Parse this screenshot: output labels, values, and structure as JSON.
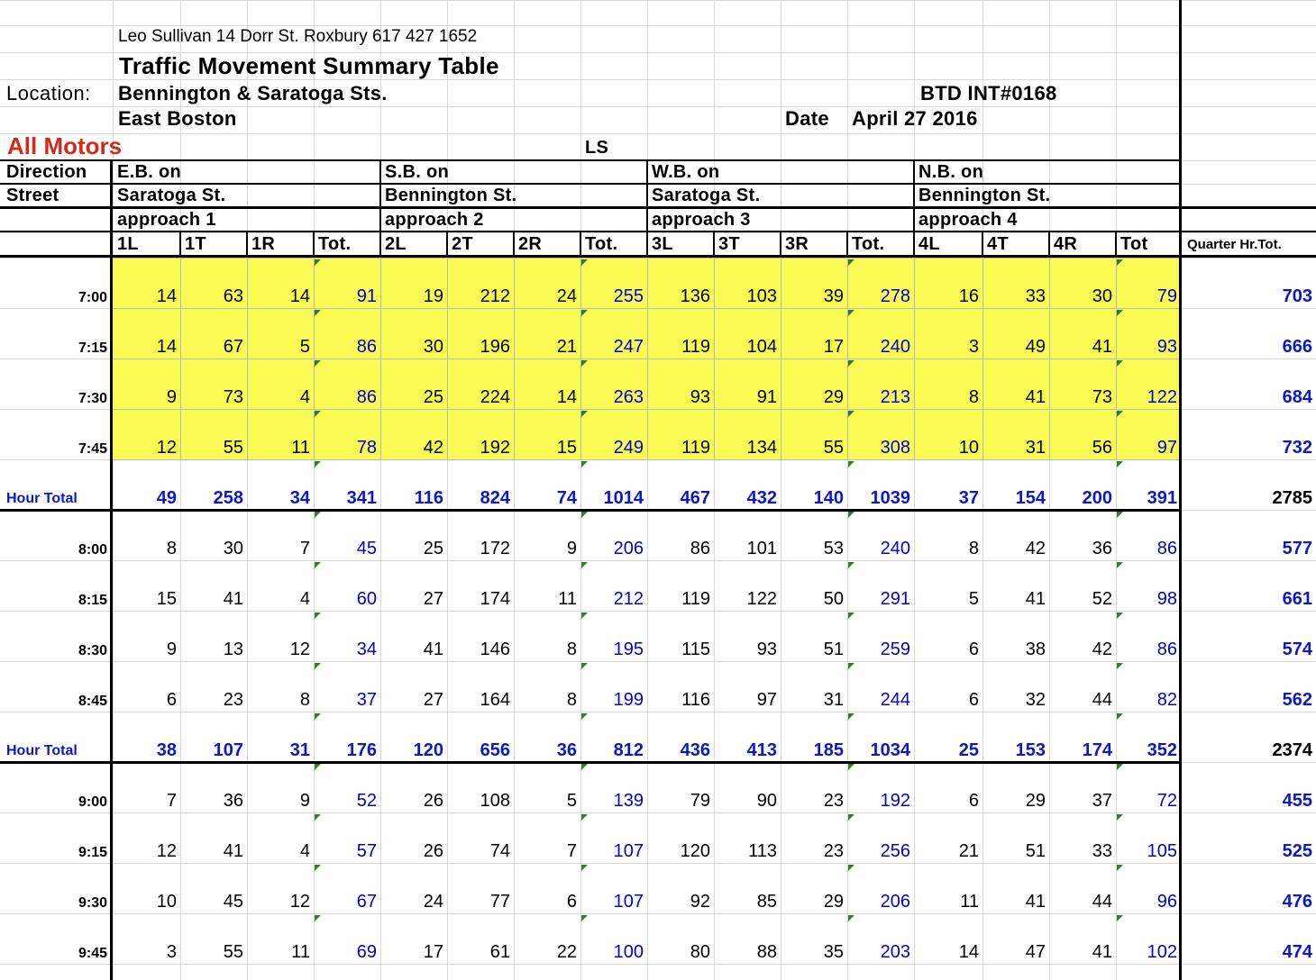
{
  "header": {
    "author_line": "Leo Sullivan 14 Dorr St. Roxbury  617 427 1652",
    "title": "Traffic Movement Summary Table",
    "location_label": "Location:",
    "location": "Bennington & Saratoga Sts.",
    "neighborhood": "East Boston",
    "btd_id": "BTD INT#0168",
    "date_label": "Date",
    "date": "April 27 2016",
    "vehicle_class": "All Motors",
    "ls": "LS",
    "direction_label": "Direction",
    "street_label": "Street"
  },
  "approaches": [
    {
      "direction": "E.B. on",
      "street": "Saratoga St.",
      "approach": "approach 1",
      "cols": [
        "1L",
        "1T",
        "1R",
        "Tot."
      ]
    },
    {
      "direction": "S.B. on",
      "street": "Bennington St.",
      "approach": "approach 2",
      "cols": [
        "2L",
        "2T",
        "2R",
        "Tot."
      ]
    },
    {
      "direction": "W.B. on",
      "street": "Saratoga St.",
      "approach": "approach 3",
      "cols": [
        "3L",
        "3T",
        "3R",
        "Tot."
      ]
    },
    {
      "direction": "N.B. on",
      "street": "Bennington St.",
      "approach": "approach 4",
      "cols": [
        "4L",
        "4T",
        "4R",
        "Tot"
      ]
    }
  ],
  "quarter_total_label": "Quarter Hr.Tot.",
  "rows": [
    {
      "label": "7:00",
      "type": "q",
      "peak": true,
      "values": [
        "14",
        "63",
        "14",
        "91",
        "19",
        "212",
        "24",
        "255",
        "136",
        "103",
        "39",
        "278",
        "16",
        "33",
        "30",
        "79",
        "703"
      ]
    },
    {
      "label": "7:15",
      "type": "q",
      "peak": true,
      "values": [
        "14",
        "67",
        "5",
        "86",
        "30",
        "196",
        "21",
        "247",
        "119",
        "104",
        "17",
        "240",
        "3",
        "49",
        "41",
        "93",
        "666"
      ]
    },
    {
      "label": "7:30",
      "type": "q",
      "peak": true,
      "values": [
        "9",
        "73",
        "4",
        "86",
        "25",
        "224",
        "14",
        "263",
        "93",
        "91",
        "29",
        "213",
        "8",
        "41",
        "73",
        "122",
        "684"
      ]
    },
    {
      "label": "7:45",
      "type": "q",
      "peak": true,
      "values": [
        "12",
        "55",
        "11",
        "78",
        "42",
        "192",
        "15",
        "249",
        "119",
        "134",
        "55",
        "308",
        "10",
        "31",
        "56",
        "97",
        "732"
      ]
    },
    {
      "label": "Hour Total",
      "type": "h",
      "values": [
        "49",
        "258",
        "34",
        "341",
        "116",
        "824",
        "74",
        "1014",
        "467",
        "432",
        "140",
        "1039",
        "37",
        "154",
        "200",
        "391",
        "2785"
      ]
    },
    {
      "label": "8:00",
      "type": "q",
      "values": [
        "8",
        "30",
        "7",
        "45",
        "25",
        "172",
        "9",
        "206",
        "86",
        "101",
        "53",
        "240",
        "8",
        "42",
        "36",
        "86",
        "577"
      ]
    },
    {
      "label": "8:15",
      "type": "q",
      "values": [
        "15",
        "41",
        "4",
        "60",
        "27",
        "174",
        "11",
        "212",
        "119",
        "122",
        "50",
        "291",
        "5",
        "41",
        "52",
        "98",
        "661"
      ]
    },
    {
      "label": "8:30",
      "type": "q",
      "values": [
        "9",
        "13",
        "12",
        "34",
        "41",
        "146",
        "8",
        "195",
        "115",
        "93",
        "51",
        "259",
        "6",
        "38",
        "42",
        "86",
        "574"
      ]
    },
    {
      "label": "8:45",
      "type": "q",
      "values": [
        "6",
        "23",
        "8",
        "37",
        "27",
        "164",
        "8",
        "199",
        "116",
        "97",
        "31",
        "244",
        "6",
        "32",
        "44",
        "82",
        "562"
      ]
    },
    {
      "label": "Hour Total",
      "type": "h",
      "values": [
        "38",
        "107",
        "31",
        "176",
        "120",
        "656",
        "36",
        "812",
        "436",
        "413",
        "185",
        "1034",
        "25",
        "153",
        "174",
        "352",
        "2374"
      ]
    },
    {
      "label": "9:00",
      "type": "q",
      "values": [
        "7",
        "36",
        "9",
        "52",
        "26",
        "108",
        "5",
        "139",
        "79",
        "90",
        "23",
        "192",
        "6",
        "29",
        "37",
        "72",
        "455"
      ]
    },
    {
      "label": "9:15",
      "type": "q",
      "values": [
        "12",
        "41",
        "4",
        "57",
        "26",
        "74",
        "7",
        "107",
        "120",
        "113",
        "23",
        "256",
        "21",
        "51",
        "33",
        "105",
        "525"
      ]
    },
    {
      "label": "9:30",
      "type": "q",
      "values": [
        "10",
        "45",
        "12",
        "67",
        "24",
        "77",
        "6",
        "107",
        "92",
        "85",
        "29",
        "206",
        "11",
        "41",
        "44",
        "96",
        "476"
      ]
    },
    {
      "label": "9:45",
      "type": "q",
      "values": [
        "3",
        "55",
        "11",
        "69",
        "17",
        "61",
        "22",
        "100",
        "80",
        "88",
        "35",
        "203",
        "14",
        "47",
        "41",
        "102",
        "474"
      ]
    }
  ]
}
